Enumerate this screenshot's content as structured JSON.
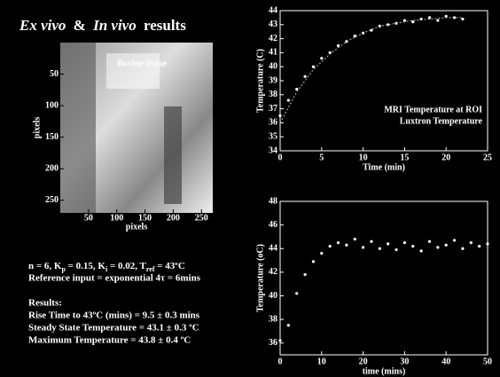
{
  "title": [
    "Ex vivo",
    "&",
    "In vivo",
    "results"
  ],
  "image_panel": {
    "label": "Bovine tissue",
    "xlabel": "pixels",
    "ylabel": "pixels",
    "xlim": [
      0,
      270
    ],
    "ylim": [
      0,
      270
    ],
    "xticks": [
      50,
      100,
      150,
      200,
      250
    ],
    "yticks": [
      50,
      100,
      150,
      200,
      250
    ]
  },
  "params_line": {
    "segments": [
      "n = 6, K",
      "p",
      " = 0.15, K",
      "i",
      " = 0.02, T",
      "ref",
      " = 43ºC"
    ],
    "subscript": [
      1,
      3,
      5
    ]
  },
  "text_lines": [
    "Reference input = exponential 4τ = 6mins",
    "Results:",
    "Rise Time to 43ºC (mins) = 9.5 ± 0.3 mins",
    "Steady State Temperature = 43.1 ± 0.3 ºC",
    "Maximum Temperature = 43.8 ± 0.4 ºC"
  ],
  "chart_data": [
    {
      "type": "scatter",
      "xlabel": "Time (min)",
      "ylabel": "Temperature (C)",
      "xlim": [
        0,
        25
      ],
      "ylim": [
        34,
        44
      ],
      "xticks": [
        0,
        5,
        10,
        15,
        20,
        25
      ],
      "yticks": [
        34,
        35,
        36,
        37,
        38,
        39,
        40,
        41,
        42,
        43,
        44
      ],
      "series": [
        {
          "name": "MRI Temperature at ROI",
          "color": "#ffffff",
          "style": "dots",
          "x": [
            0,
            1,
            2,
            3,
            4,
            5,
            6,
            7,
            8,
            9,
            10,
            11,
            12,
            13,
            14,
            15,
            16,
            17,
            18,
            19,
            20,
            21,
            22
          ],
          "values": [
            36.5,
            37.6,
            38.4,
            39.3,
            40.0,
            40.6,
            41.0,
            41.5,
            41.8,
            42.2,
            42.4,
            42.6,
            42.9,
            43.0,
            43.1,
            43.3,
            43.2,
            43.4,
            43.5,
            43.3,
            43.6,
            43.5,
            43.4
          ]
        },
        {
          "name": "Luxtron Temperature",
          "color": "#bbbbbb",
          "style": "line",
          "x": [
            0,
            2,
            4,
            6,
            8,
            10,
            12,
            14,
            16,
            18,
            20,
            22
          ],
          "values": [
            36.0,
            38.2,
            39.8,
            40.9,
            41.8,
            42.4,
            42.9,
            43.1,
            43.3,
            43.4,
            43.5,
            43.5
          ]
        }
      ]
    },
    {
      "type": "scatter",
      "xlabel": "time (mins)",
      "ylabel": "Temperature (oC)",
      "xlim": [
        0,
        50
      ],
      "ylim": [
        35,
        48
      ],
      "xticks": [
        0,
        10,
        20,
        30,
        40,
        50
      ],
      "yticks": [
        36,
        38,
        40,
        42,
        44,
        46,
        48
      ],
      "series": [
        {
          "color": "#ffffff",
          "style": "dots",
          "x": [
            0,
            2,
            4,
            6,
            8,
            10,
            12,
            14,
            16,
            18,
            20,
            22,
            24,
            26,
            28,
            30,
            32,
            34,
            36,
            38,
            40,
            42,
            44,
            46,
            48,
            50
          ],
          "values": [
            36.2,
            37.5,
            40.2,
            41.8,
            42.9,
            43.6,
            44.2,
            44.5,
            44.3,
            44.8,
            44.1,
            44.6,
            44.0,
            44.4,
            43.9,
            44.5,
            44.2,
            43.8,
            44.6,
            44.1,
            44.3,
            44.7,
            44.0,
            44.5,
            44.2,
            44.4
          ]
        }
      ]
    }
  ]
}
